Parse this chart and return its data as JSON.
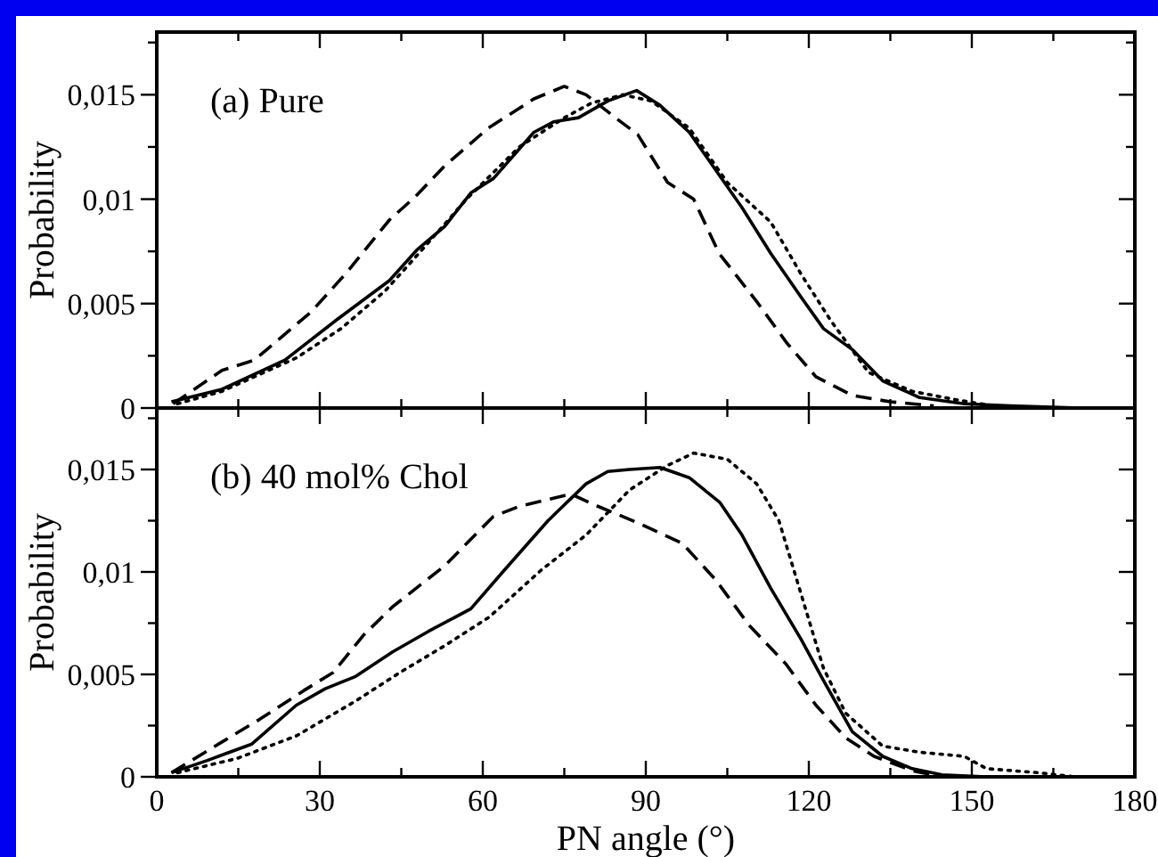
{
  "chart_data": [
    {
      "type": "line",
      "annotations": [
        "(a) Pure"
      ],
      "ylabel": "Probability",
      "tick_labels": "y",
      "xlim": [
        0,
        180
      ],
      "ylim": [
        0,
        0.018
      ],
      "xticks": [
        0,
        {
          "value": 15,
          "label": null
        },
        30,
        {
          "value": 45,
          "label": null
        },
        60,
        {
          "value": 75,
          "label": null
        },
        90,
        {
          "value": 105,
          "label": null
        },
        120,
        {
          "value": 135,
          "label": null
        },
        150,
        {
          "value": 165,
          "label": null
        },
        180
      ],
      "yticks": [
        0,
        {
          "value": 0.0025,
          "label": null
        },
        {
          "value": 0.005,
          "label": "0,005"
        },
        {
          "value": 0.0075,
          "label": null
        },
        {
          "value": 0.01,
          "label": "0,01"
        },
        {
          "value": 0.0125,
          "label": null
        },
        {
          "value": 0.015,
          "label": "0,015"
        },
        {
          "value": 0.0175,
          "label": null
        }
      ],
      "series": [
        {
          "color": "#000000",
          "line_style": "solid",
          "x": [
            2.7,
            12,
            23.6,
            33,
            42.8,
            48,
            53,
            57.8,
            62,
            69.4,
            73,
            77.6,
            83,
            88.3,
            92.6,
            98,
            107.7,
            113,
            118.6,
            122.7,
            128,
            133.6,
            140.4,
            148.6,
            157,
            170
          ],
          "values": [
            0.0003,
            0.0009,
            0.0023,
            0.0042,
            0.0061,
            0.0076,
            0.0087,
            0.0103,
            0.011,
            0.0132,
            0.0137,
            0.0139,
            0.0147,
            0.0152,
            0.0145,
            0.0132,
            0.0096,
            0.0074,
            0.0053,
            0.0038,
            0.0028,
            0.0013,
            0.0005,
            0.0002,
            0.0001,
            0
          ]
        },
        {
          "color": "#000000",
          "line_style": "dashed",
          "x": [
            3,
            12,
            18,
            28.4,
            35,
            42.8,
            47.5,
            53,
            61,
            69.4,
            75,
            79,
            84.4,
            88.5,
            94,
            98.8,
            103.5,
            110.4,
            116,
            121.3,
            128,
            135,
            143
          ],
          "values": [
            0.0002,
            0.0018,
            0.0023,
            0.0046,
            0.0065,
            0.009,
            0.0101,
            0.0116,
            0.0134,
            0.0148,
            0.0154,
            0.015,
            0.0139,
            0.0131,
            0.0108,
            0.01,
            0.0074,
            0.0051,
            0.0031,
            0.0015,
            0.0006,
            0.0003,
            0.0001
          ]
        },
        {
          "color": "#000000",
          "line_style": "dotted",
          "x": [
            3.8,
            12,
            25.7,
            33.9,
            42,
            49.6,
            57,
            66.7,
            75,
            80,
            85.8,
            91,
            98,
            105,
            113,
            118.6,
            124,
            131,
            139,
            147,
            154,
            162
          ],
          "values": [
            0.0002,
            0.0008,
            0.0024,
            0.0038,
            0.0056,
            0.0078,
            0.01,
            0.0125,
            0.0139,
            0.0146,
            0.015,
            0.0147,
            0.0134,
            0.0108,
            0.0089,
            0.0064,
            0.0042,
            0.0017,
            0.0008,
            0.0004,
            0.0001,
            0
          ]
        }
      ]
    },
    {
      "type": "line",
      "annotations": [
        "(b) 40 mol% Chol"
      ],
      "xlabel": "PN angle (°)",
      "ylabel": "Probability",
      "xlim": [
        0,
        180
      ],
      "ylim": [
        0,
        0.018
      ],
      "xticks": [
        0,
        {
          "value": 15,
          "label": null
        },
        30,
        {
          "value": 45,
          "label": null
        },
        60,
        {
          "value": 75,
          "label": null
        },
        90,
        {
          "value": 105,
          "label": null
        },
        120,
        {
          "value": 135,
          "label": null
        },
        150,
        {
          "value": 165,
          "label": null
        },
        180
      ],
      "yticks": [
        0,
        {
          "value": 0.0025,
          "label": null
        },
        {
          "value": 0.005,
          "label": "0,005"
        },
        {
          "value": 0.0075,
          "label": null
        },
        {
          "value": 0.01,
          "label": "0,01"
        },
        {
          "value": 0.0125,
          "label": null
        },
        {
          "value": 0.015,
          "label": "0,015"
        },
        {
          "value": 0.0175,
          "label": null
        }
      ],
      "series": [
        {
          "color": "#000000",
          "line_style": "solid",
          "x": [
            2.7,
            9.3,
            17.5,
            25.7,
            31,
            36.6,
            43.4,
            50,
            57.8,
            64,
            72,
            79,
            83,
            87,
            92.6,
            98,
            103.6,
            107.7,
            113,
            118.6,
            122.7,
            128,
            133.6,
            139,
            144.5,
            152.7
          ],
          "values": [
            0.0002,
            0.0008,
            0.0016,
            0.0035,
            0.0043,
            0.0049,
            0.0061,
            0.0071,
            0.0082,
            0.0101,
            0.0125,
            0.0143,
            0.0149,
            0.015,
            0.0151,
            0.0146,
            0.0134,
            0.0118,
            0.0092,
            0.0067,
            0.0047,
            0.0022,
            0.001,
            0.0004,
            0.0001,
            0
          ]
        },
        {
          "color": "#000000",
          "line_style": "dashed",
          "x": [
            2.7,
            12,
            18.9,
            27,
            32.5,
            38,
            43.4,
            53,
            61.9,
            66.7,
            76.2,
            80.3,
            88.5,
            96.7,
            102.9,
            109,
            115.8,
            121.3,
            126.8,
            132,
            139,
            144.5
          ],
          "values": [
            0.0002,
            0.0017,
            0.0028,
            0.0042,
            0.0051,
            0.0069,
            0.0083,
            0.0103,
            0.0127,
            0.0132,
            0.0138,
            0.0133,
            0.0124,
            0.0114,
            0.0096,
            0.0074,
            0.0055,
            0.0035,
            0.0019,
            0.001,
            0.0003,
            0
          ]
        },
        {
          "color": "#000000",
          "line_style": "dotted",
          "x": [
            3.8,
            14.8,
            25.7,
            36.6,
            44.8,
            53,
            61.2,
            70.8,
            79,
            87,
            94,
            98.8,
            105,
            110.4,
            114.5,
            118.6,
            122.7,
            126.8,
            133.6,
            140.4,
            148.6,
            152.7,
            162.3,
            169
          ],
          "values": [
            0.0002,
            0.0009,
            0.002,
            0.0037,
            0.0051,
            0.0064,
            0.0078,
            0.0101,
            0.0118,
            0.014,
            0.0152,
            0.0158,
            0.0155,
            0.0143,
            0.0125,
            0.0089,
            0.0053,
            0.0031,
            0.0015,
            0.0012,
            0.001,
            0.0004,
            0.0002,
            0
          ]
        }
      ]
    }
  ]
}
